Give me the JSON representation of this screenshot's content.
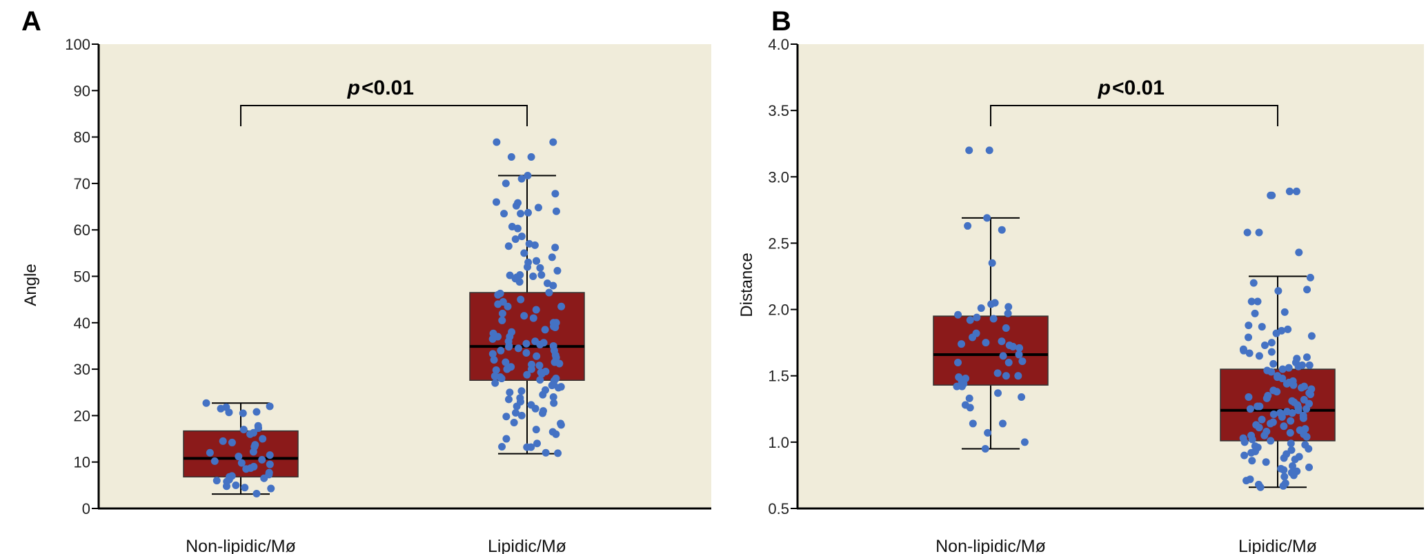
{
  "colors": {
    "background": "#f0ecda",
    "box_fill": "#8b1a1a",
    "median": "#000000",
    "points": "#4472c4"
  },
  "chart_data": [
    {
      "panel_label": "A",
      "type": "box",
      "ylabel": "Angle",
      "xlabel": "",
      "ylim": [
        0,
        100
      ],
      "yticks": [
        0,
        10,
        20,
        30,
        40,
        50,
        60,
        70,
        80,
        90,
        100
      ],
      "ytick_labels": [
        "0",
        "10",
        "20",
        "30",
        "40",
        "50",
        "60",
        "70",
        "80",
        "90",
        "100"
      ],
      "categories": [
        "Non-lipidic/Mø",
        "Lipidic/Mø"
      ],
      "annotation": {
        "p_italic": "p",
        "p_rest": "<0.01"
      },
      "boxes": [
        {
          "whisker_low": 3.1,
          "q1": 6.8,
          "median": 10.8,
          "q3": 16.7,
          "whisker_high": 22.7
        },
        {
          "whisker_low": 11.8,
          "q1": 27.6,
          "median": 34.9,
          "q3": 46.5,
          "whisker_high": 71.7
        }
      ],
      "points": [
        [
          22.7,
          22,
          21.8,
          21.5,
          20.8,
          20.5,
          20.7,
          17.8,
          17.3,
          17,
          16.3,
          16,
          15,
          14.5,
          14.2,
          13.7,
          13.3,
          12,
          12.2,
          11.2,
          11.5,
          10.5,
          10.2,
          9.8,
          9.5,
          9,
          8.7,
          8.5,
          7.7,
          7.3,
          7,
          6.8,
          6.5,
          6.2,
          6,
          5.8,
          5,
          4.8,
          4.3,
          4.5,
          3.2
        ],
        [
          78.9,
          78.9,
          75.7,
          75.7,
          71.7,
          71,
          70,
          67.8,
          66,
          65.8,
          65.2,
          64.8,
          64,
          63.7,
          63.5,
          63.5,
          60.7,
          60.3,
          58.6,
          58,
          57,
          56.7,
          56.5,
          56.2,
          55,
          54.1,
          53.3,
          53.3,
          53,
          52,
          51.8,
          51.2,
          50.3,
          50.3,
          50.2,
          50,
          49.8,
          49.5,
          48.8,
          48.5,
          48,
          46.3,
          46.5,
          46,
          45,
          44.5,
          44,
          43.5,
          43.5,
          42.8,
          42,
          41.5,
          41,
          40.5,
          40,
          40,
          39.6,
          39.2,
          39,
          38.5,
          38,
          37.7,
          37,
          37,
          36.5,
          36,
          36,
          35.7,
          35.5,
          35.3,
          35,
          35,
          34.8,
          34.5,
          34,
          34,
          33.5,
          33.3,
          33,
          32.8,
          32.5,
          32,
          31.5,
          31.5,
          31.2,
          31,
          30.8,
          30.5,
          30.2,
          30,
          30,
          29.8,
          29.5,
          29.3,
          29,
          28.8,
          28.5,
          28.3,
          28,
          28,
          27.7,
          27.5,
          27,
          26.8,
          26.5,
          26.2,
          26,
          25.5,
          25.3,
          25,
          24.5,
          24,
          23.8,
          23.5,
          23,
          22.7,
          22.3,
          22,
          21.5,
          21,
          20.6,
          20.5,
          20,
          19.8,
          18.5,
          18.3,
          18,
          17,
          16.5,
          16,
          15,
          14,
          13.3,
          13.2,
          13.2,
          12,
          11.9
        ]
      ]
    },
    {
      "panel_label": "B",
      "type": "box",
      "ylabel": "Distance",
      "xlabel": "",
      "ylim": [
        0.5,
        4.0
      ],
      "yticks": [
        0.5,
        1.0,
        1.5,
        2.0,
        2.5,
        3.0,
        3.5,
        4.0
      ],
      "ytick_labels": [
        "0.5",
        "1.0",
        "1.5",
        "2.0",
        "2.5",
        "3.0",
        "3.5",
        "4.0"
      ],
      "categories": [
        "Non-lipidic/Mø",
        "Lipidic/Mø"
      ],
      "annotation": {
        "p_italic": "p",
        "p_rest": "<0.01"
      },
      "boxes": [
        {
          "whisker_low": 0.95,
          "q1": 1.43,
          "median": 1.66,
          "q3": 1.95,
          "whisker_high": 2.69
        },
        {
          "whisker_low": 0.66,
          "q1": 1.01,
          "median": 1.24,
          "q3": 1.55,
          "whisker_high": 2.25
        }
      ],
      "points": [
        [
          3.2,
          3.2,
          2.69,
          2.63,
          2.6,
          2.35,
          2.05,
          2.04,
          2.02,
          2.01,
          1.97,
          1.96,
          1.94,
          1.93,
          1.92,
          1.86,
          1.82,
          1.79,
          1.76,
          1.75,
          1.74,
          1.73,
          1.72,
          1.71,
          1.66,
          1.65,
          1.61,
          1.6,
          1.6,
          1.52,
          1.5,
          1.5,
          1.49,
          1.48,
          1.46,
          1.44,
          1.42,
          1.42,
          1.37,
          1.34,
          1.33,
          1.28,
          1.26,
          1.14,
          1.14,
          1.07,
          1.0,
          0.95
        ],
        [
          2.89,
          2.89,
          2.86,
          2.86,
          2.58,
          2.58,
          2.43,
          2.24,
          2.2,
          2.15,
          2.14,
          2.06,
          2.06,
          1.98,
          1.97,
          1.88,
          1.87,
          1.85,
          1.84,
          1.82,
          1.8,
          1.79,
          1.75,
          1.73,
          1.7,
          1.69,
          1.68,
          1.67,
          1.65,
          1.64,
          1.63,
          1.6,
          1.59,
          1.58,
          1.58,
          1.57,
          1.56,
          1.55,
          1.54,
          1.53,
          1.5,
          1.49,
          1.48,
          1.46,
          1.45,
          1.44,
          1.43,
          1.42,
          1.41,
          1.4,
          1.39,
          1.38,
          1.37,
          1.36,
          1.35,
          1.34,
          1.33,
          1.32,
          1.31,
          1.3,
          1.29,
          1.28,
          1.27,
          1.27,
          1.26,
          1.25,
          1.25,
          1.24,
          1.23,
          1.22,
          1.22,
          1.21,
          1.2,
          1.19,
          1.18,
          1.17,
          1.16,
          1.15,
          1.14,
          1.13,
          1.12,
          1.11,
          1.1,
          1.09,
          1.08,
          1.07,
          1.06,
          1.05,
          1.05,
          1.04,
          1.03,
          1.02,
          1.01,
          1.0,
          0.99,
          0.98,
          0.97,
          0.96,
          0.95,
          0.94,
          0.93,
          0.92,
          0.91,
          0.9,
          0.89,
          0.88,
          0.87,
          0.86,
          0.85,
          0.82,
          0.81,
          0.8,
          0.79,
          0.78,
          0.77,
          0.75,
          0.74,
          0.72,
          0.71,
          0.69,
          0.68,
          0.67,
          0.66
        ]
      ]
    }
  ]
}
